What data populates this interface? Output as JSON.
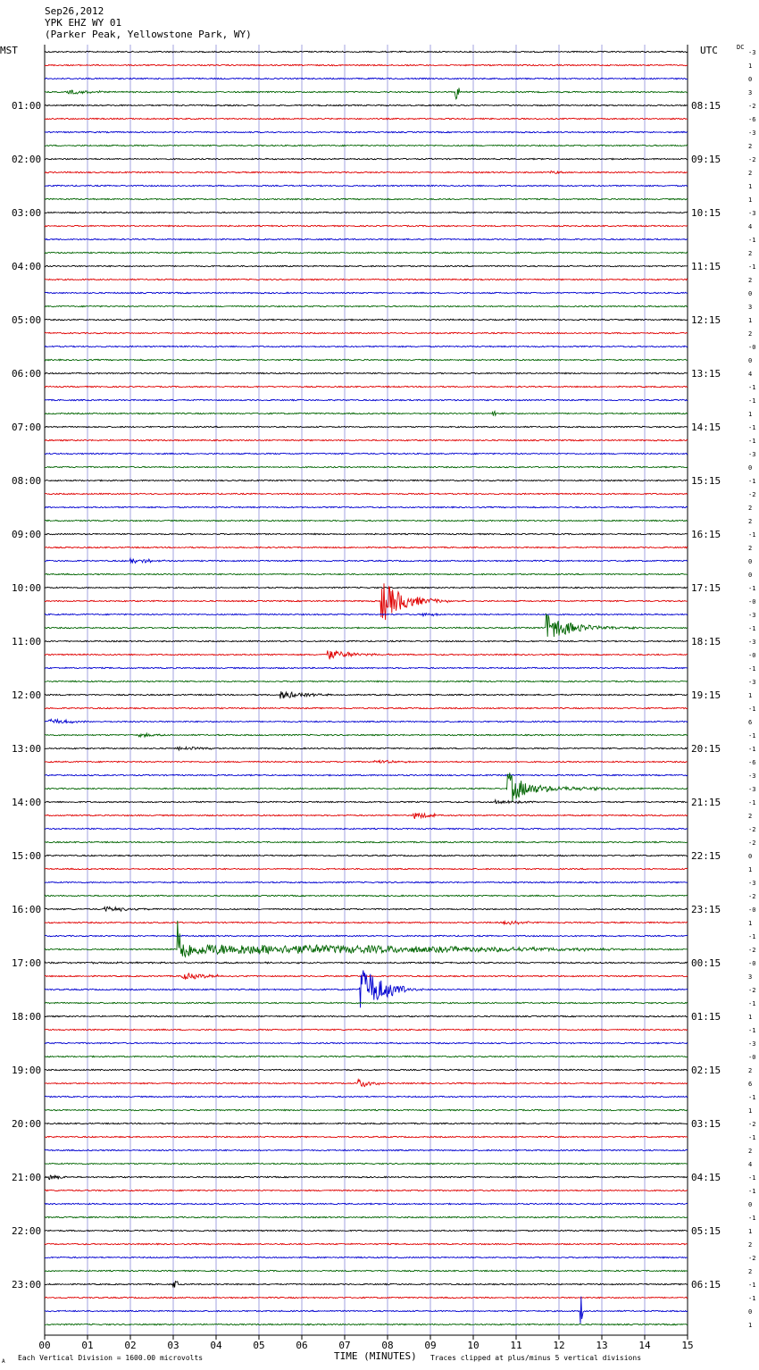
{
  "header": {
    "date": "Sep26,2012",
    "station": "YPK EHZ WY 01",
    "location": "(Parker Peak, Yellowstone Park, WY)"
  },
  "labels": {
    "left_timezone": "MST",
    "right_timezone": "UTC",
    "dc_label": "DC",
    "xlabel": "TIME (MINUTES)",
    "scale_note": "Each Vertical Division = 1600.00 microvolts",
    "clip_note": "Traces clipped at plus/minus 5 vertical divisions",
    "corner_mark": "A"
  },
  "colors": {
    "trace_cycle": [
      "#000000",
      "#e00000",
      "#0000d0",
      "#006400"
    ],
    "grid": "#8c8cd8",
    "frame": "#000000"
  },
  "chart_data": {
    "type": "line",
    "title": "",
    "xlim": [
      0,
      15
    ],
    "x_ticks": [
      "00",
      "01",
      "02",
      "03",
      "04",
      "05",
      "06",
      "07",
      "08",
      "09",
      "10",
      "11",
      "12",
      "13",
      "14",
      "15"
    ],
    "rows_per_hour": 4,
    "hours": 24,
    "left_hour_labels": [
      "",
      "01:00",
      "02:00",
      "03:00",
      "04:00",
      "05:00",
      "06:00",
      "07:00",
      "08:00",
      "09:00",
      "10:00",
      "11:00",
      "12:00",
      "13:00",
      "14:00",
      "15:00",
      "16:00",
      "17:00",
      "18:00",
      "19:00",
      "20:00",
      "21:00",
      "22:00",
      "23:00"
    ],
    "right_hour_labels": [
      "",
      "08:15",
      "09:15",
      "10:15",
      "11:15",
      "12:15",
      "13:15",
      "14:15",
      "15:15",
      "16:15",
      "17:15",
      "18:15",
      "19:15",
      "20:15",
      "21:15",
      "22:15",
      "23:15",
      "00:15",
      "01:15",
      "02:15",
      "03:15",
      "04:15",
      "05:15",
      "06:15"
    ],
    "dc_offsets": [
      "-3",
      "1",
      "0",
      "3",
      "-2",
      "-6",
      "-3",
      "2",
      "-2",
      "2",
      "1",
      "1",
      "-3",
      "4",
      "-1",
      "2",
      "-1",
      "2",
      "0",
      "3",
      "1",
      "2",
      "-0",
      "0",
      "4",
      "-1",
      "-1",
      "1",
      "-1",
      "-1",
      "-3",
      "0",
      "-1",
      "-2",
      "2",
      "2",
      "-1",
      "2",
      "0",
      "0",
      "-1",
      "-0",
      "-3",
      "-1",
      "-3",
      "-0",
      "-1",
      "-3",
      "1",
      "-1",
      "6",
      "-1",
      "-1",
      "-6",
      "-3",
      "-3",
      "-1",
      "2",
      "-2",
      "-2",
      "0",
      "1",
      "-3",
      "-2",
      "-0",
      "1",
      "-1",
      "-2",
      "-0",
      "3",
      "-2",
      "-1",
      "1",
      "-1",
      "-3",
      "-0",
      "2",
      "6",
      "-1",
      "1",
      "-2",
      "-1",
      "2",
      "4",
      "-1",
      "-1",
      "0",
      "-1",
      "1",
      "2",
      "-2",
      "2",
      "-1",
      "-1",
      "0",
      "1"
    ],
    "events": [
      {
        "row": 3,
        "start_min": 0.55,
        "dur_min": 0.8,
        "amp": 3,
        "decay": 0.5
      },
      {
        "row": 3,
        "start_min": 9.58,
        "dur_min": 0.1,
        "amp": 9,
        "decay": 0.4
      },
      {
        "row": 9,
        "start_min": 11.8,
        "dur_min": 0.3,
        "amp": 2,
        "decay": 0.5
      },
      {
        "row": 27,
        "start_min": 10.45,
        "dur_min": 0.08,
        "amp": 5,
        "decay": 0.4
      },
      {
        "row": 38,
        "start_min": 2.0,
        "dur_min": 0.8,
        "amp": 3,
        "decay": 0.5
      },
      {
        "row": 41,
        "start_min": 7.85,
        "dur_min": 2.0,
        "amp": 26,
        "decay": 0.35
      },
      {
        "row": 42,
        "start_min": 8.8,
        "dur_min": 0.4,
        "amp": 2,
        "decay": 0.5
      },
      {
        "row": 43,
        "start_min": 11.7,
        "dur_min": 2.5,
        "amp": 18,
        "decay": 0.35
      },
      {
        "row": 45,
        "start_min": 6.6,
        "dur_min": 2.0,
        "amp": 6,
        "decay": 0.4
      },
      {
        "row": 48,
        "start_min": 5.5,
        "dur_min": 1.8,
        "amp": 5,
        "decay": 0.4
      },
      {
        "row": 50,
        "start_min": 0.1,
        "dur_min": 1.0,
        "amp": 3,
        "decay": 0.5
      },
      {
        "row": 51,
        "start_min": 2.2,
        "dur_min": 0.6,
        "amp": 2,
        "decay": 0.5
      },
      {
        "row": 52,
        "start_min": 3.1,
        "dur_min": 1.0,
        "amp": 2,
        "decay": 0.5
      },
      {
        "row": 53,
        "start_min": 7.7,
        "dur_min": 0.9,
        "amp": 2,
        "decay": 0.5
      },
      {
        "row": 55,
        "start_min": 10.8,
        "dur_min": 3.5,
        "amp": 20,
        "decay": 0.3
      },
      {
        "row": 56,
        "start_min": 10.5,
        "dur_min": 2.0,
        "amp": 2,
        "decay": 0.5
      },
      {
        "row": 57,
        "start_min": 8.6,
        "dur_min": 0.5,
        "amp": 4,
        "decay": 0.5
      },
      {
        "row": 64,
        "start_min": 1.4,
        "dur_min": 1.8,
        "amp": 3,
        "decay": 0.5
      },
      {
        "row": 65,
        "start_min": 10.7,
        "dur_min": 1.2,
        "amp": 2,
        "decay": 0.5
      },
      {
        "row": 67,
        "start_min": 3.1,
        "dur_min": 11.9,
        "amp": 42,
        "decay": 0.08
      },
      {
        "row": 68,
        "start_min": 0.0,
        "dur_min": 15.0,
        "amp": 3,
        "decay": 0.02
      },
      {
        "row": 69,
        "start_min": 3.2,
        "dur_min": 1.5,
        "amp": 4,
        "decay": 0.5
      },
      {
        "row": 70,
        "start_min": 7.35,
        "dur_min": 1.5,
        "amp": 30,
        "decay": 0.4
      },
      {
        "row": 77,
        "start_min": 7.3,
        "dur_min": 0.5,
        "amp": 5,
        "decay": 0.5
      },
      {
        "row": 84,
        "start_min": 0.1,
        "dur_min": 0.4,
        "amp": 3,
        "decay": 0.5
      },
      {
        "row": 92,
        "start_min": 3.0,
        "dur_min": 0.1,
        "amp": 5,
        "decay": 0.5
      },
      {
        "row": 94,
        "start_min": 12.5,
        "dur_min": 0.05,
        "amp": 30,
        "decay": 0.1
      }
    ]
  }
}
